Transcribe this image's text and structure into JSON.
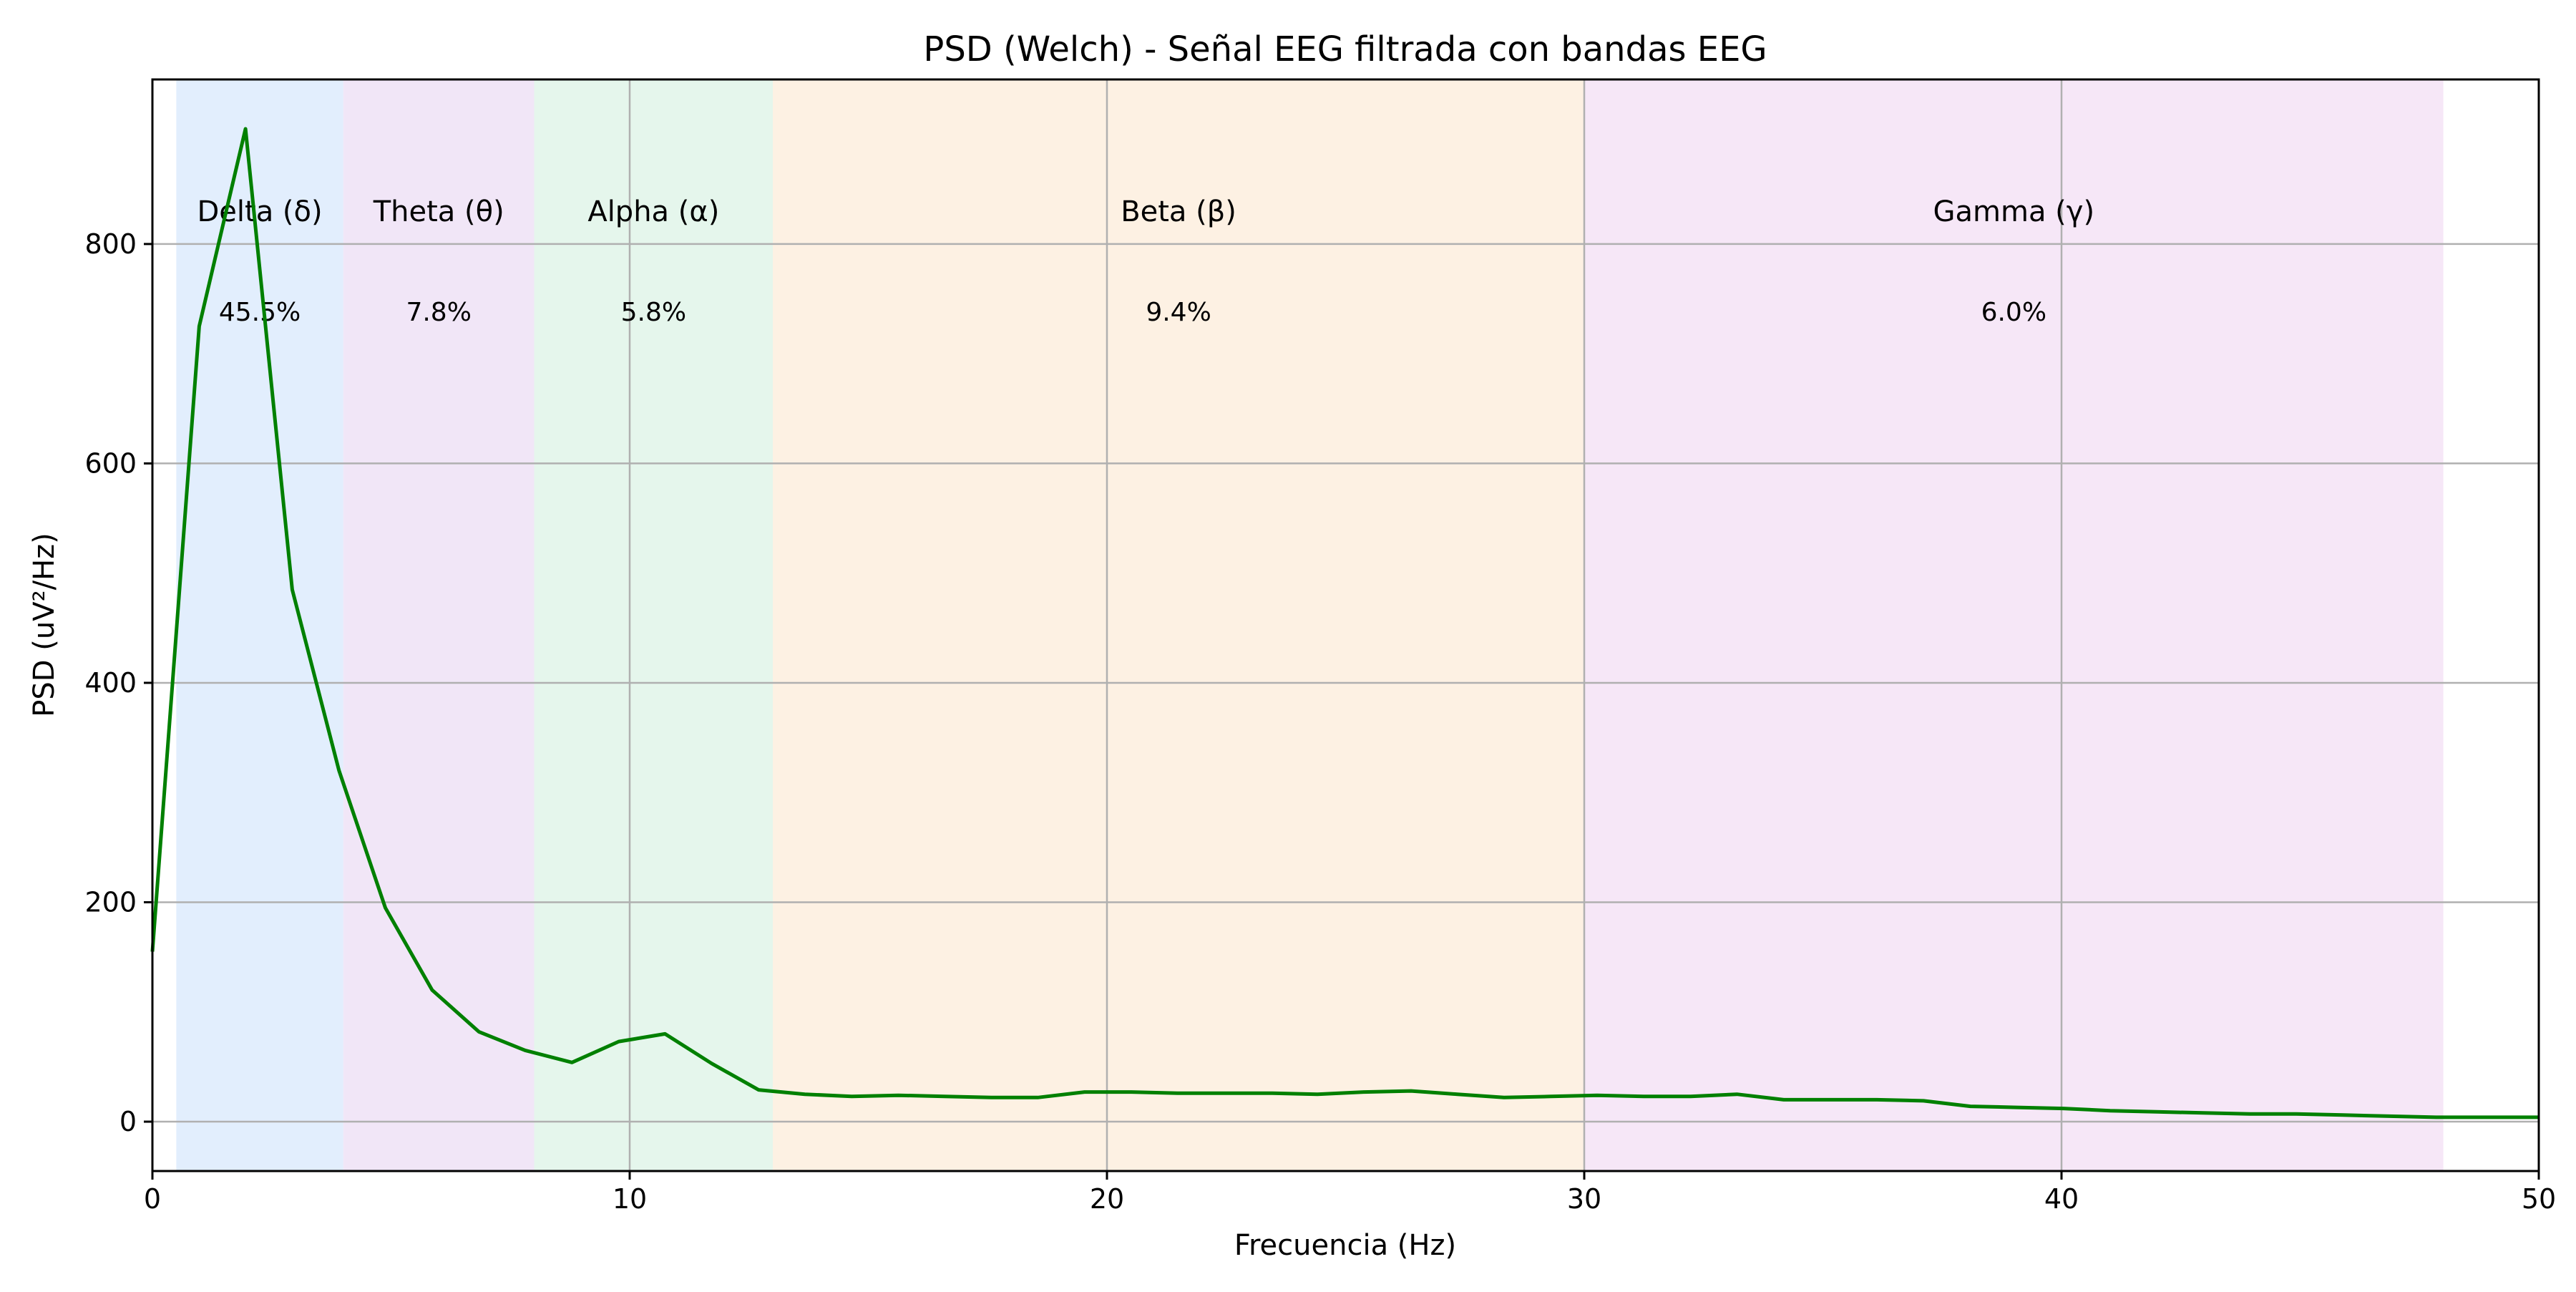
{
  "chart_data": {
    "type": "line",
    "title": "PSD (Welch) - Señal EEG filtrada con bandas EEG",
    "xlabel": "Frecuencia (Hz)",
    "ylabel": "PSD (uV²/Hz)",
    "xlim": [
      0,
      50
    ],
    "ylim": [
      -45,
      950
    ],
    "xticks": [
      0,
      10,
      20,
      30,
      40,
      50
    ],
    "yticks": [
      0,
      200,
      400,
      600,
      800
    ],
    "grid": true,
    "line_color": "#008000",
    "bands": [
      {
        "label": "Delta (δ)",
        "percent": "45.5%",
        "range": [
          0.5,
          4
        ],
        "color": "#cfe2fb"
      },
      {
        "label": "Theta (θ)",
        "percent": "7.8%",
        "range": [
          4,
          8
        ],
        "color": "#e8d5f2"
      },
      {
        "label": "Alpha (α)",
        "percent": "5.8%",
        "range": [
          8,
          13
        ],
        "color": "#d3f0df"
      },
      {
        "label": "Beta (β)",
        "percent": "9.4%",
        "range": [
          13,
          30
        ],
        "color": "#fbe7d0"
      },
      {
        "label": "Gamma (γ)",
        "percent": "6.0%",
        "range": [
          30,
          48
        ],
        "color": "#f0d7f2"
      }
    ],
    "x": [
      0,
      0.98,
      1.95,
      2.93,
      3.91,
      4.88,
      5.86,
      6.84,
      7.81,
      8.79,
      9.77,
      10.74,
      11.72,
      12.7,
      13.67,
      14.65,
      15.63,
      16.6,
      17.58,
      18.55,
      19.53,
      20.51,
      21.48,
      22.46,
      23.44,
      24.41,
      25.39,
      26.37,
      27.34,
      28.32,
      29.3,
      30.27,
      31.25,
      32.23,
      33.2,
      34.18,
      35.16,
      36.13,
      37.11,
      38.09,
      39.06,
      40.04,
      41.02,
      41.99,
      42.97,
      43.95,
      44.92,
      45.9,
      46.88,
      47.85,
      48.83,
      49.8,
      50
    ],
    "values": [
      155,
      725,
      905,
      485,
      320,
      195,
      120,
      82,
      65,
      54,
      73,
      80,
      53,
      29,
      25,
      23,
      24,
      23,
      22,
      22,
      27,
      27,
      26,
      26,
      26,
      25,
      27,
      28,
      25,
      22,
      23,
      24,
      23,
      23,
      25,
      20,
      20,
      20,
      19,
      14,
      13,
      12,
      10,
      9,
      8,
      7,
      7,
      6,
      5,
      4,
      4,
      4,
      4
    ]
  }
}
